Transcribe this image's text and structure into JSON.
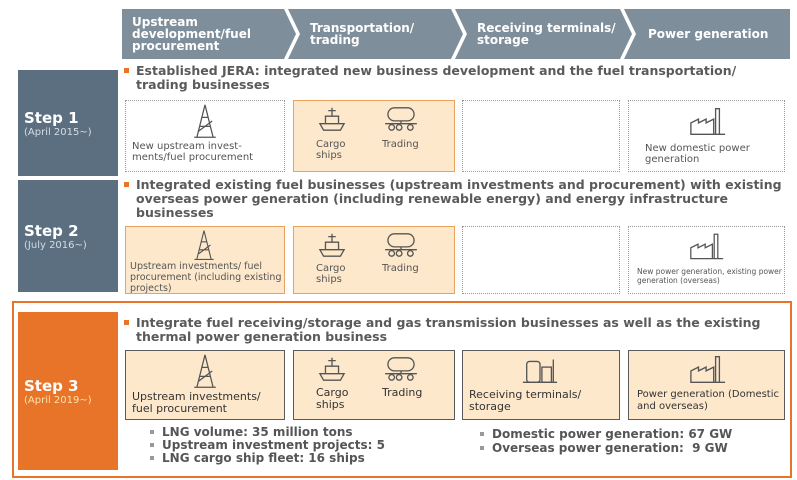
{
  "header": {
    "stages": [
      "Upstream development/fuel procurement",
      "Transportation/ trading",
      "Receiving terminals/ storage",
      "Power generation"
    ]
  },
  "steps": [
    {
      "label": "Step 1",
      "date": "(April 2015~)",
      "description": "Established JERA: integrated new business development and the fuel transportation/ trading businesses",
      "upstream": "New upstream invest-ments/fuel procurement",
      "cargo": "Cargo ships",
      "trading": "Trading",
      "power": "New domestic power generation"
    },
    {
      "label": "Step 2",
      "date": "(July 2016~)",
      "description": "Integrated existing fuel businesses (upstream investments and procurement) with existing overseas power generation (including renewable energy) and energy infrastructure businesses",
      "upstream": "Upstream investments/ fuel procurement (including existing projects)",
      "cargo": "Cargo ships",
      "trading": "Trading",
      "power": "New power generation, existing power generation (overseas)"
    },
    {
      "label": "Step 3",
      "date": "(April 2019~)",
      "description": "Integrate fuel receiving/storage and gas transmission businesses as well as the existing thermal power generation business",
      "upstream": "Upstream investments/ fuel procurement",
      "cargo": "Cargo ships",
      "trading": "Trading",
      "terminals": "Receiving terminals/ storage",
      "power": "Power generation (Domestic and overseas)"
    }
  ],
  "results": {
    "left": [
      "LNG volume: 35 million tons",
      "Upstream investment projects: 5",
      "LNG cargo ship fleet: 16 ships"
    ],
    "right": [
      "Domestic power generation: 67 GW",
      "Overseas power generation:  9 GW"
    ]
  }
}
